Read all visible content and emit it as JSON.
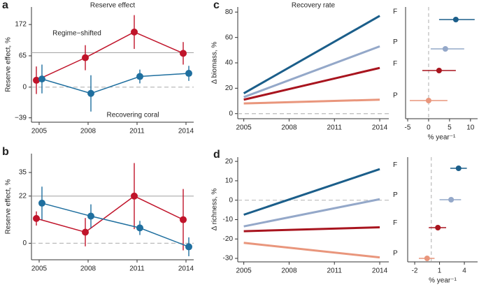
{
  "chart_data": [
    {
      "type": "errorbar",
      "label": "a",
      "title": "Reserve effect",
      "ylabel": "Reserve effect, %",
      "categories": [
        "2005",
        "2008",
        "2011",
        "2014"
      ],
      "ylim": [
        -0.56,
        1.28
      ],
      "yticks": [
        {
          "value": -0.49,
          "label": "−39"
        },
        0,
        {
          "value": 0.5,
          "label": "65"
        },
        {
          "value": 1,
          "label": "172"
        }
      ],
      "hline": 0.55,
      "dashed_line": 0,
      "series": [
        {
          "name": "Regime−shifted",
          "color": "#c0142a",
          "values": [
            0.11,
            0.47,
            0.88,
            0.54
          ],
          "errors": [
            0.22,
            0.2,
            0.27,
            0.18
          ]
        },
        {
          "name": "Recovering coral",
          "color": "#1f6f9f",
          "values": [
            0.13,
            -0.1,
            0.17,
            0.22
          ],
          "errors": [
            0.23,
            0.29,
            0.11,
            0.12
          ]
        }
      ]
    },
    {
      "type": "errorbar",
      "label": "b",
      "ylabel": "Reserve effect, %",
      "categories": [
        "2005",
        "2008",
        "2011",
        "2014"
      ],
      "ylim": [
        -0.07,
        0.38
      ],
      "yticks": [
        0,
        {
          "value": 0.2,
          "label": "22"
        },
        {
          "value": 0.3,
          "label": "35"
        }
      ],
      "hline": 0.2,
      "dashed_line": 0,
      "series": [
        {
          "name": "Regime-shifted",
          "color": "#c0142a",
          "values": [
            0.105,
            0.047,
            0.2,
            0.1
          ],
          "errors": [
            0.03,
            0.06,
            0.14,
            0.13
          ]
        },
        {
          "name": "Recovering coral",
          "color": "#1f6f9f",
          "values": [
            0.17,
            0.115,
            0.065,
            -0.015
          ],
          "errors": [
            0.07,
            0.05,
            0.03,
            0.04
          ]
        }
      ]
    },
    {
      "type": "line",
      "label": "c",
      "title": "Recovery rate",
      "ylabel": "Δ biomass, %",
      "x": [
        2005,
        2014
      ],
      "xlim": [
        2004.6,
        2014.6
      ],
      "xticks": [
        2005,
        2008,
        2011,
        2014
      ],
      "ylim": [
        -4,
        84
      ],
      "yticks": [
        0,
        20,
        40,
        60,
        80
      ],
      "dashed_line": 0,
      "series": [
        {
          "name": "F",
          "color": "#1b5e8a",
          "values": [
            16,
            77
          ]
        },
        {
          "name": "P",
          "color": "#94a8c9",
          "values": [
            13,
            53
          ]
        },
        {
          "name": "F",
          "color": "#a8141e",
          "values": [
            11,
            36
          ]
        },
        {
          "name": "P",
          "color": "#e9967c",
          "values": [
            8,
            11
          ]
        }
      ]
    },
    {
      "type": "forest",
      "xlabel": "% year⁻¹",
      "xlim": [
        -5.5,
        11.7
      ],
      "xticks": [
        -5,
        0,
        5,
        10
      ],
      "dashed_line": 0,
      "colors": [
        "#1b5e8a",
        "#94a8c9",
        "#a8141e",
        "#e9967c"
      ],
      "values": [
        6.5,
        4,
        2.5,
        0
      ],
      "lower": [
        2.5,
        0.5,
        -1.5,
        -4.5
      ],
      "upper": [
        11,
        8.5,
        6.5,
        4.5
      ]
    },
    {
      "type": "line",
      "label": "d",
      "ylabel": "Δ richness, %",
      "x": [
        2005,
        2014
      ],
      "xlim": [
        2004.6,
        2014.6
      ],
      "xticks": [
        2005,
        2008,
        2011,
        2014
      ],
      "ylim": [
        -31.8,
        22.2
      ],
      "yticks": [
        -30,
        -20,
        -10,
        0,
        10,
        20
      ],
      "dashed_line": 0,
      "series": [
        {
          "name": "F",
          "color": "#1b5e8a",
          "values": [
            -7.5,
            16
          ]
        },
        {
          "name": "P",
          "color": "#94a8c9",
          "values": [
            -13.5,
            0.5
          ]
        },
        {
          "name": "F",
          "color": "#a8141e",
          "values": [
            -16,
            -14
          ]
        },
        {
          "name": "P",
          "color": "#e9967c",
          "values": [
            -22,
            -29.5
          ]
        }
      ]
    },
    {
      "type": "forest",
      "xlabel": "% year⁻¹",
      "xlim": [
        -2.85,
        5.6
      ],
      "xticks": [
        -2,
        1,
        4
      ],
      "dashed_line": 0,
      "colors": [
        "#1b5e8a",
        "#94a8c9",
        "#a8141e",
        "#e9967c"
      ],
      "values": [
        3.3,
        2.4,
        0.8,
        -0.5
      ],
      "lower": [
        2.3,
        1.0,
        -0.3,
        -1.5
      ],
      "upper": [
        4.3,
        3.6,
        1.8,
        0.4
      ]
    }
  ]
}
